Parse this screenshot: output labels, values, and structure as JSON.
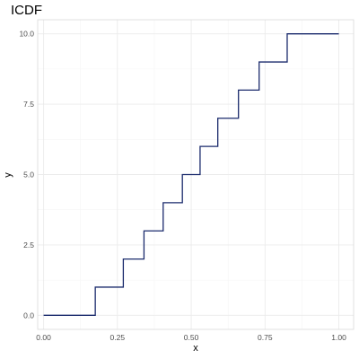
{
  "chart_data": {
    "type": "line",
    "title": "ICDF",
    "xlabel": "x",
    "ylabel": "y",
    "xlim": [
      -0.02,
      1.05
    ],
    "ylim": [
      -0.5,
      10.5
    ],
    "x_ticks": [
      0,
      0.25,
      0.5,
      0.75,
      1
    ],
    "x_tick_labels": [
      "0.00",
      "0.25",
      "0.50",
      "0.75",
      "1.00"
    ],
    "y_ticks": [
      0,
      2.5,
      5,
      7.5,
      10
    ],
    "y_tick_labels": [
      "0.0",
      "2.5",
      "5.0",
      "7.5",
      "10.0"
    ],
    "grid": true,
    "legend": "none",
    "series": [
      {
        "color": "#1a2a6c",
        "step": "post",
        "x": [
          0,
          0.175,
          0.27,
          0.34,
          0.405,
          0.47,
          0.53,
          0.59,
          0.66,
          0.73,
          0.825,
          1.0
        ],
        "y": [
          0,
          1,
          2,
          3,
          4,
          5,
          6,
          7,
          8,
          9,
          10,
          10
        ]
      }
    ]
  }
}
